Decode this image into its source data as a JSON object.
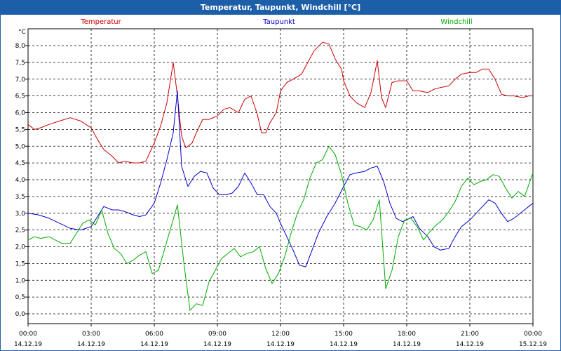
{
  "window": {
    "title": "Temperatur, Taupunkt, Windchill [°C]"
  },
  "chart_data": {
    "type": "line",
    "title": "Temperatur, Taupunkt, Windchill [°C]",
    "ylabel": "°C",
    "xlabel": "",
    "ylim": [
      -0.3,
      8.5
    ],
    "xlim": [
      0,
      24
    ],
    "y_ticks": [
      "0,0",
      "0,5",
      "1,0",
      "1,5",
      "2,0",
      "2,5",
      "3,0",
      "3,5",
      "4,0",
      "4,5",
      "5,0",
      "5,5",
      "6,0",
      "6,5",
      "7,0",
      "7,5",
      "8,0"
    ],
    "x_ticks": [
      {
        "time": "00:00",
        "date": "14.12.19"
      },
      {
        "time": "03:00",
        "date": "14.12.19"
      },
      {
        "time": "06:00",
        "date": "14.12.19"
      },
      {
        "time": "09:00",
        "date": "14.12.19"
      },
      {
        "time": "12:00",
        "date": "14.12.19"
      },
      {
        "time": "15:00",
        "date": "14.12.19"
      },
      {
        "time": "18:00",
        "date": "14.12.19"
      },
      {
        "time": "21:00",
        "date": "14.12.19"
      },
      {
        "time": "00:00",
        "date": "15.12.19"
      }
    ],
    "grid": true,
    "legend_position": "top",
    "series": [
      {
        "name": "Temperatur",
        "color": "#cc0000",
        "x": [
          0,
          0.3,
          0.6,
          1,
          1.5,
          2,
          2.5,
          3,
          3.3,
          3.6,
          4,
          4.3,
          4.6,
          5,
          5.3,
          5.6,
          6,
          6.3,
          6.6,
          6.9,
          7.1,
          7.3,
          7.5,
          7.8,
          8,
          8.3,
          8.6,
          9,
          9.3,
          9.6,
          10,
          10.3,
          10.6,
          10.9,
          11.1,
          11.3,
          11.5,
          11.8,
          12,
          12.3,
          12.6,
          13,
          13.3,
          13.6,
          14,
          14.3,
          14.6,
          14.9,
          15,
          15.3,
          15.6,
          16,
          16.3,
          16.6,
          16.8,
          17,
          17.3,
          17.6,
          18,
          18.3,
          18.6,
          19,
          19.3,
          19.6,
          20,
          20.3,
          20.6,
          21,
          21.3,
          21.6,
          21.9,
          22.2,
          22.5,
          22.8,
          23.1,
          23.5,
          23.8,
          24
        ],
        "values": [
          5.65,
          5.5,
          5.55,
          5.65,
          5.75,
          5.85,
          5.75,
          5.55,
          5.2,
          4.9,
          4.7,
          4.5,
          4.55,
          4.5,
          4.5,
          4.55,
          5.1,
          5.6,
          6.3,
          7.5,
          6.5,
          5.3,
          4.95,
          5.1,
          5.4,
          5.8,
          5.8,
          5.9,
          6.1,
          6.15,
          6.0,
          6.4,
          6.5,
          5.95,
          5.4,
          5.4,
          5.7,
          6.0,
          6.65,
          6.9,
          7.0,
          7.15,
          7.5,
          7.85,
          8.1,
          8.05,
          7.6,
          7.3,
          6.95,
          6.5,
          6.3,
          6.15,
          6.6,
          7.55,
          6.45,
          6.15,
          6.9,
          6.95,
          6.95,
          6.65,
          6.65,
          6.6,
          6.7,
          6.75,
          6.8,
          7.0,
          7.15,
          7.2,
          7.2,
          7.3,
          7.3,
          7.0,
          6.55,
          6.5,
          6.5,
          6.45,
          6.5,
          6.5
        ]
      },
      {
        "name": "Taupunkt",
        "color": "#0000cc",
        "x": [
          0,
          0.5,
          1,
          1.5,
          2,
          2.5,
          3,
          3.3,
          3.6,
          4,
          4.3,
          4.6,
          5,
          5.3,
          5.6,
          6,
          6.3,
          6.6,
          6.9,
          7.1,
          7.3,
          7.6,
          7.9,
          8.2,
          8.5,
          8.8,
          9.1,
          9.4,
          9.7,
          10,
          10.3,
          10.6,
          10.9,
          11.2,
          11.5,
          11.8,
          12,
          12.3,
          12.6,
          12.9,
          13.2,
          13.5,
          13.8,
          14.2,
          14.6,
          15,
          15.3,
          15.6,
          16,
          16.3,
          16.6,
          16.9,
          17.2,
          17.5,
          17.8,
          18,
          18.3,
          18.6,
          19,
          19.3,
          19.6,
          20,
          20.3,
          20.6,
          21,
          21.3,
          21.6,
          21.9,
          22.2,
          22.5,
          22.8,
          23.1,
          23.5,
          23.8,
          24
        ],
        "values": [
          3.0,
          2.95,
          2.85,
          2.7,
          2.55,
          2.5,
          2.6,
          2.9,
          3.2,
          3.1,
          3.1,
          3.05,
          2.95,
          2.9,
          2.95,
          3.3,
          3.9,
          4.6,
          5.4,
          6.65,
          4.4,
          3.8,
          4.1,
          4.25,
          4.2,
          3.75,
          3.55,
          3.55,
          3.6,
          3.8,
          4.2,
          3.9,
          3.55,
          3.55,
          3.2,
          3.0,
          2.7,
          2.3,
          1.9,
          1.45,
          1.4,
          1.9,
          2.4,
          2.9,
          3.3,
          3.8,
          4.15,
          4.2,
          4.25,
          4.35,
          4.4,
          3.95,
          3.3,
          2.85,
          2.75,
          2.8,
          2.9,
          2.55,
          2.3,
          2.0,
          1.9,
          1.95,
          2.3,
          2.6,
          2.8,
          3.0,
          3.2,
          3.4,
          3.3,
          3.0,
          2.75,
          2.85,
          3.05,
          3.2,
          3.3
        ]
      },
      {
        "name": "Windchill",
        "color": "#00aa00",
        "x": [
          0,
          0.3,
          0.6,
          1,
          1.3,
          1.6,
          2,
          2.3,
          2.6,
          2.9,
          3.2,
          3.5,
          3.8,
          4.1,
          4.4,
          4.7,
          5,
          5.3,
          5.6,
          5.9,
          6.2,
          6.5,
          6.8,
          7.1,
          7.4,
          7.7,
          8,
          8.3,
          8.6,
          8.9,
          9.2,
          9.5,
          9.8,
          10.1,
          10.4,
          10.7,
          11,
          11.3,
          11.6,
          11.9,
          12.2,
          12.5,
          12.8,
          13.1,
          13.4,
          13.7,
          14,
          14.3,
          14.6,
          14.9,
          15.2,
          15.5,
          15.8,
          16.1,
          16.4,
          16.7,
          17,
          17.3,
          17.6,
          17.9,
          18.2,
          18.5,
          18.8,
          19.1,
          19.4,
          19.7,
          20,
          20.3,
          20.6,
          20.9,
          21.2,
          21.5,
          21.8,
          22.1,
          22.4,
          22.7,
          23,
          23.3,
          23.6,
          24
        ],
        "values": [
          2.2,
          2.3,
          2.25,
          2.3,
          2.2,
          2.1,
          2.1,
          2.4,
          2.7,
          2.8,
          2.65,
          3.1,
          2.4,
          1.95,
          1.8,
          1.5,
          1.6,
          1.75,
          1.85,
          1.2,
          1.3,
          1.95,
          2.6,
          3.25,
          1.55,
          0.1,
          0.3,
          0.25,
          0.95,
          1.3,
          1.65,
          1.8,
          1.95,
          1.7,
          1.8,
          1.85,
          2.0,
          1.35,
          0.9,
          1.2,
          1.7,
          2.4,
          3.0,
          3.4,
          4.05,
          4.5,
          4.6,
          5.0,
          4.75,
          4.15,
          3.3,
          2.65,
          2.6,
          2.5,
          2.8,
          3.4,
          0.75,
          1.3,
          2.3,
          2.8,
          2.85,
          2.6,
          2.2,
          2.45,
          2.65,
          2.8,
          3.05,
          3.35,
          3.8,
          4.05,
          3.85,
          3.95,
          4.0,
          4.15,
          4.1,
          3.75,
          3.45,
          3.65,
          3.5,
          4.2
        ]
      }
    ]
  }
}
